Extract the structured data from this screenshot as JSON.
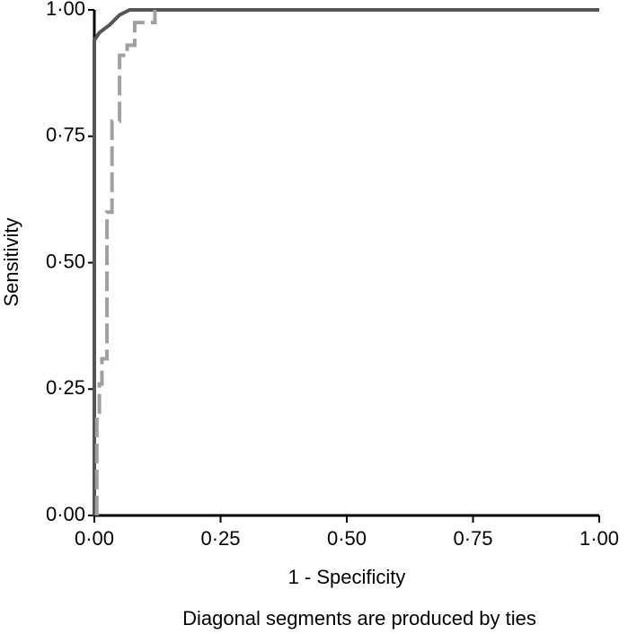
{
  "chart_data": {
    "type": "line",
    "xlabel": "1 - Specificity",
    "ylabel": "Sensitivity",
    "note": "Diagonal segments are produced by ties",
    "xlim": [
      0,
      1
    ],
    "ylim": [
      0,
      1
    ],
    "xticks": [
      {
        "value": 0,
        "label": "0·00"
      },
      {
        "value": 0.25,
        "label": "0·25"
      },
      {
        "value": 0.5,
        "label": "0·50"
      },
      {
        "value": 0.75,
        "label": "0·75"
      },
      {
        "value": 1,
        "label": "1·00"
      }
    ],
    "yticks": [
      {
        "value": 0,
        "label": "0·00"
      },
      {
        "value": 0.25,
        "label": "0·25"
      },
      {
        "value": 0.5,
        "label": "0·50"
      },
      {
        "value": 0.75,
        "label": "0·75"
      },
      {
        "value": 1,
        "label": "1·00"
      }
    ],
    "series": [
      {
        "color": "#555555",
        "dash": false,
        "x": [
          0,
          0,
          0.01,
          0.03,
          0.05,
          0.07,
          1
        ],
        "values": [
          0,
          0.94,
          0.955,
          0.97,
          0.99,
          1,
          1
        ]
      },
      {
        "color": "#a0a0a0",
        "dash": true,
        "x": [
          0.005,
          0.005,
          0.01,
          0.01,
          0.015,
          0.015,
          0.025,
          0.025,
          0.035,
          0.035,
          0.05,
          0.05,
          0.065,
          0.065,
          0.08,
          0.08,
          0.12,
          0.12
        ],
        "values": [
          0,
          0.2,
          0.2,
          0.26,
          0.26,
          0.31,
          0.31,
          0.6,
          0.6,
          0.78,
          0.78,
          0.91,
          0.91,
          0.93,
          0.93,
          0.975,
          0.975,
          1
        ]
      }
    ]
  }
}
